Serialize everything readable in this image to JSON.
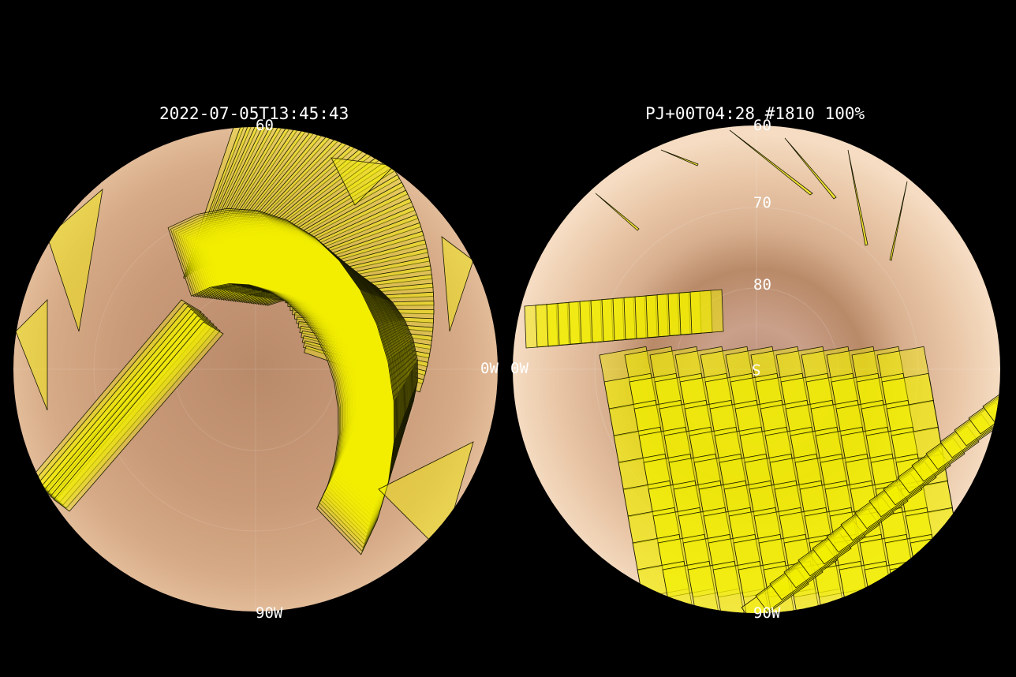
{
  "left_panel": {
    "title": "2022-07-05T13:45:43",
    "labels": {
      "top": "60",
      "right": "0W",
      "bottom": "90W"
    }
  },
  "right_panel": {
    "title": "PJ+00T04:28 #1810 100%",
    "labels": {
      "top": "60",
      "ring_70": "70",
      "ring_80": "80",
      "pole": "S",
      "left": "0W",
      "bottom": "90W"
    }
  },
  "colors": {
    "background": "#000000",
    "planet_left": "#c99a78",
    "planet_right": "#e7c2a2",
    "footprint_fill": "#f4f000",
    "footprint_stroke": "#1a1a00"
  }
}
